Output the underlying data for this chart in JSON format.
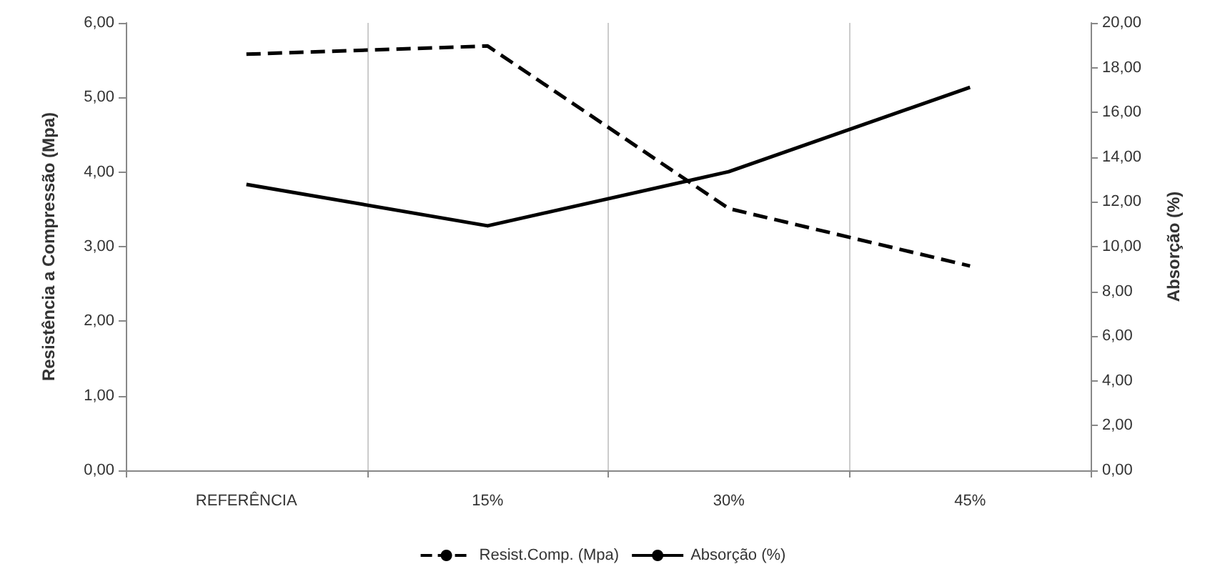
{
  "chart_data": {
    "type": "line",
    "ylabel": "Resistência a Compressão (Mpa)",
    "y2label": "Absorção (%)",
    "categories": [
      "REFERÊNCIA",
      "15%",
      "30%",
      "45%"
    ],
    "series": [
      {
        "name": "Resist.Comp. (Mpa)",
        "color": "#000000",
        "line_style": "dashed",
        "values": [
          5.58,
          5.69,
          3.51,
          2.74
        ]
      },
      {
        "name": "Absorção (%)",
        "color": "#000000",
        "line_style": "solid",
        "axis": "y2",
        "values": [
          12.78,
          10.93,
          13.35,
          17.12
        ]
      }
    ],
    "ylim": [
      0,
      6
    ],
    "yticks": [
      {
        "value": 0,
        "label": "0,00"
      },
      {
        "value": 1,
        "label": "1,00"
      },
      {
        "value": 2,
        "label": "2,00"
      },
      {
        "value": 3,
        "label": "3,00"
      },
      {
        "value": 4,
        "label": "4,00"
      },
      {
        "value": 5,
        "label": "5,00"
      },
      {
        "value": 6,
        "label": "6,00"
      }
    ],
    "y2lim": [
      0,
      20
    ],
    "y2ticks": [
      {
        "value": 0,
        "label": "0,00"
      },
      {
        "value": 2,
        "label": "2,00"
      },
      {
        "value": 4,
        "label": "4,00"
      },
      {
        "value": 6,
        "label": "6,00"
      },
      {
        "value": 8,
        "label": "8,00"
      },
      {
        "value": 10,
        "label": "10,00"
      },
      {
        "value": 12,
        "label": "12,00"
      },
      {
        "value": 14,
        "label": "14,00"
      },
      {
        "value": 16,
        "label": "16,00"
      },
      {
        "value": 18,
        "label": "18,00"
      },
      {
        "value": 20,
        "label": "20,00"
      }
    ],
    "grid": "x",
    "legend": "bottom",
    "marker": "none"
  }
}
